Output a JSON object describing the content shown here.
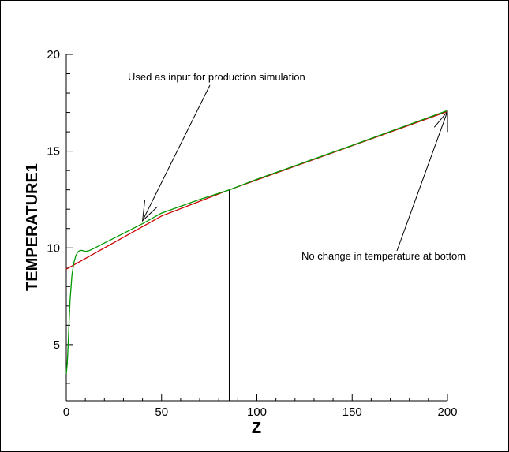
{
  "chart_data": {
    "type": "line",
    "xlabel": "Z",
    "ylabel": "TEMPERATURE1",
    "xlim": [
      0,
      200
    ],
    "ylim": [
      2.1,
      20
    ],
    "x_ticks": [
      0,
      50,
      100,
      150,
      200
    ],
    "y_ticks": [
      5,
      10,
      15,
      20
    ],
    "grid": false,
    "series": [
      {
        "color": "#cc0000",
        "x": [
          0,
          50,
          85.5,
          200
        ],
        "y": [
          8.9,
          11.65,
          13.0,
          17.05
        ]
      },
      {
        "color": "#009900",
        "x": [
          0,
          0.5,
          1,
          1.5,
          2,
          3,
          4,
          5,
          6,
          7,
          8,
          9,
          10,
          12,
          15,
          20,
          30,
          40,
          50,
          60,
          70,
          85.5,
          100,
          150,
          200
        ],
        "y": [
          3.5,
          4.0,
          5.0,
          6.2,
          7.3,
          8.6,
          9.25,
          9.6,
          9.78,
          9.85,
          9.87,
          9.85,
          9.82,
          9.86,
          10.0,
          10.25,
          10.75,
          11.25,
          11.8,
          12.15,
          12.5,
          13.0,
          13.55,
          15.3,
          17.1
        ]
      }
    ],
    "vertical_line": {
      "x": 85.5,
      "y_from": 2.1,
      "y_to": 13.0
    },
    "annotations": [
      {
        "text": "Used as input for production simulation",
        "target": [
          40,
          11.4
        ]
      },
      {
        "text": "No change in temperature at bottom",
        "target": [
          200,
          17.05
        ]
      }
    ]
  }
}
